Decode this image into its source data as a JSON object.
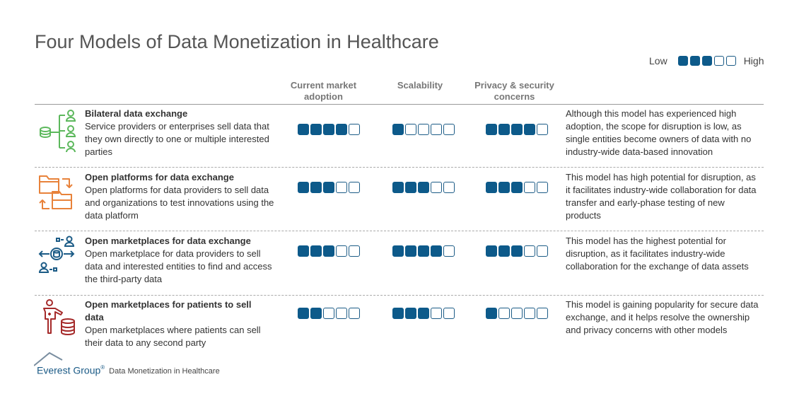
{
  "title": "Four Models of Data Monetization in Healthcare",
  "legend": {
    "low": "Low",
    "high": "High",
    "filled": 3,
    "total": 5
  },
  "columns": {
    "adoption": "Current market adoption",
    "scalability": "Scalability",
    "privacy": "Privacy & security concerns"
  },
  "rows": [
    {
      "icon": "data-exchange-network-icon",
      "title": "Bilateral data exchange",
      "description": "Service providers or enterprises sell data that they own directly to one or multiple interested parties",
      "adoption": 4,
      "scalability": 1,
      "privacy": 4,
      "comment": "Although this model has experienced high adoption, the scope for disruption is low, as single entities become owners of data with no industry-wide data-based innovation"
    },
    {
      "icon": "folder-exchange-icon",
      "title": "Open platforms for data exchange",
      "description": "Open platforms for data providers to sell data and organizations to test innovations using the data platform",
      "adoption": 3,
      "scalability": 3,
      "privacy": 3,
      "comment": "This model has high potential for disruption, as it facilitates industry-wide collaboration for data transfer and early-phase testing of new products"
    },
    {
      "icon": "marketplace-exchange-icon",
      "title": "Open marketplaces for data exchange",
      "description": "Open marketplace for data providers to sell data and interested entities to find and access the third-party data",
      "adoption": 3,
      "scalability": 4,
      "privacy": 3,
      "comment": "This model has the highest  potential for disruption, as it facilitates industry-wide collaboration for the exchange of data assets"
    },
    {
      "icon": "patient-data-icon",
      "title": "Open marketplaces for patients to sell data",
      "description": "Open marketplaces where patients can sell their data to any second party",
      "adoption": 2,
      "scalability": 3,
      "privacy": 1,
      "comment": "This model is gaining popularity for secure data exchange, and it helps resolve the ownership and privacy concerns with other models"
    }
  ],
  "footer": {
    "brand": "Everest Group",
    "registered": "®",
    "caption": "Data Monetization in Healthcare"
  },
  "colors": {
    "filled": "#0d5a8a",
    "green": "#5cb85c",
    "orange": "#e8823a",
    "blue": "#1b5b86",
    "red": "#a52a2a"
  }
}
